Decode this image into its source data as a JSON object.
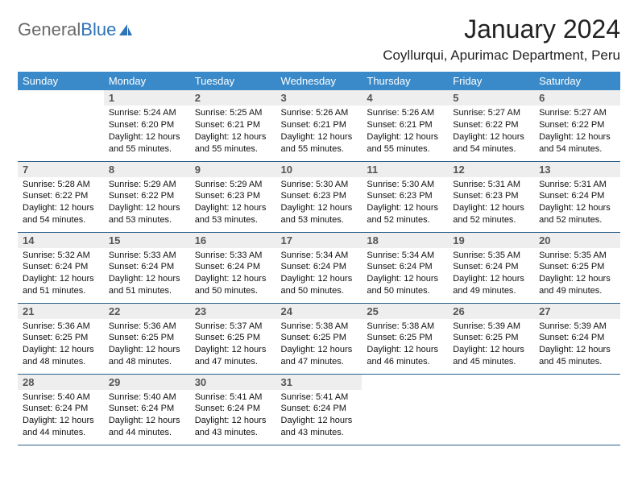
{
  "brand": {
    "word1": "General",
    "word2": "Blue"
  },
  "title": "January 2024",
  "location": "Coyllurqui, Apurimac Department, Peru",
  "colors": {
    "header_bg": "#3a8ac9",
    "header_text": "#ffffff",
    "day_num_bg": "#eeeeee",
    "row_divider": "#2c5f8a",
    "logo_gray": "#6a6a6a",
    "logo_blue": "#2d73b8"
  },
  "dayNames": [
    "Sunday",
    "Monday",
    "Tuesday",
    "Wednesday",
    "Thursday",
    "Friday",
    "Saturday"
  ],
  "startOffset": 1,
  "labels": {
    "sunrise": "Sunrise:",
    "sunset": "Sunset:",
    "daylight": "Daylight:"
  },
  "days": [
    {
      "n": 1,
      "sunrise": "5:24 AM",
      "sunset": "6:20 PM",
      "daylight": "12 hours and 55 minutes."
    },
    {
      "n": 2,
      "sunrise": "5:25 AM",
      "sunset": "6:21 PM",
      "daylight": "12 hours and 55 minutes."
    },
    {
      "n": 3,
      "sunrise": "5:26 AM",
      "sunset": "6:21 PM",
      "daylight": "12 hours and 55 minutes."
    },
    {
      "n": 4,
      "sunrise": "5:26 AM",
      "sunset": "6:21 PM",
      "daylight": "12 hours and 55 minutes."
    },
    {
      "n": 5,
      "sunrise": "5:27 AM",
      "sunset": "6:22 PM",
      "daylight": "12 hours and 54 minutes."
    },
    {
      "n": 6,
      "sunrise": "5:27 AM",
      "sunset": "6:22 PM",
      "daylight": "12 hours and 54 minutes."
    },
    {
      "n": 7,
      "sunrise": "5:28 AM",
      "sunset": "6:22 PM",
      "daylight": "12 hours and 54 minutes."
    },
    {
      "n": 8,
      "sunrise": "5:29 AM",
      "sunset": "6:22 PM",
      "daylight": "12 hours and 53 minutes."
    },
    {
      "n": 9,
      "sunrise": "5:29 AM",
      "sunset": "6:23 PM",
      "daylight": "12 hours and 53 minutes."
    },
    {
      "n": 10,
      "sunrise": "5:30 AM",
      "sunset": "6:23 PM",
      "daylight": "12 hours and 53 minutes."
    },
    {
      "n": 11,
      "sunrise": "5:30 AM",
      "sunset": "6:23 PM",
      "daylight": "12 hours and 52 minutes."
    },
    {
      "n": 12,
      "sunrise": "5:31 AM",
      "sunset": "6:23 PM",
      "daylight": "12 hours and 52 minutes."
    },
    {
      "n": 13,
      "sunrise": "5:31 AM",
      "sunset": "6:24 PM",
      "daylight": "12 hours and 52 minutes."
    },
    {
      "n": 14,
      "sunrise": "5:32 AM",
      "sunset": "6:24 PM",
      "daylight": "12 hours and 51 minutes."
    },
    {
      "n": 15,
      "sunrise": "5:33 AM",
      "sunset": "6:24 PM",
      "daylight": "12 hours and 51 minutes."
    },
    {
      "n": 16,
      "sunrise": "5:33 AM",
      "sunset": "6:24 PM",
      "daylight": "12 hours and 50 minutes."
    },
    {
      "n": 17,
      "sunrise": "5:34 AM",
      "sunset": "6:24 PM",
      "daylight": "12 hours and 50 minutes."
    },
    {
      "n": 18,
      "sunrise": "5:34 AM",
      "sunset": "6:24 PM",
      "daylight": "12 hours and 50 minutes."
    },
    {
      "n": 19,
      "sunrise": "5:35 AM",
      "sunset": "6:24 PM",
      "daylight": "12 hours and 49 minutes."
    },
    {
      "n": 20,
      "sunrise": "5:35 AM",
      "sunset": "6:25 PM",
      "daylight": "12 hours and 49 minutes."
    },
    {
      "n": 21,
      "sunrise": "5:36 AM",
      "sunset": "6:25 PM",
      "daylight": "12 hours and 48 minutes."
    },
    {
      "n": 22,
      "sunrise": "5:36 AM",
      "sunset": "6:25 PM",
      "daylight": "12 hours and 48 minutes."
    },
    {
      "n": 23,
      "sunrise": "5:37 AM",
      "sunset": "6:25 PM",
      "daylight": "12 hours and 47 minutes."
    },
    {
      "n": 24,
      "sunrise": "5:38 AM",
      "sunset": "6:25 PM",
      "daylight": "12 hours and 47 minutes."
    },
    {
      "n": 25,
      "sunrise": "5:38 AM",
      "sunset": "6:25 PM",
      "daylight": "12 hours and 46 minutes."
    },
    {
      "n": 26,
      "sunrise": "5:39 AM",
      "sunset": "6:25 PM",
      "daylight": "12 hours and 45 minutes."
    },
    {
      "n": 27,
      "sunrise": "5:39 AM",
      "sunset": "6:24 PM",
      "daylight": "12 hours and 45 minutes."
    },
    {
      "n": 28,
      "sunrise": "5:40 AM",
      "sunset": "6:24 PM",
      "daylight": "12 hours and 44 minutes."
    },
    {
      "n": 29,
      "sunrise": "5:40 AM",
      "sunset": "6:24 PM",
      "daylight": "12 hours and 44 minutes."
    },
    {
      "n": 30,
      "sunrise": "5:41 AM",
      "sunset": "6:24 PM",
      "daylight": "12 hours and 43 minutes."
    },
    {
      "n": 31,
      "sunrise": "5:41 AM",
      "sunset": "6:24 PM",
      "daylight": "12 hours and 43 minutes."
    }
  ]
}
